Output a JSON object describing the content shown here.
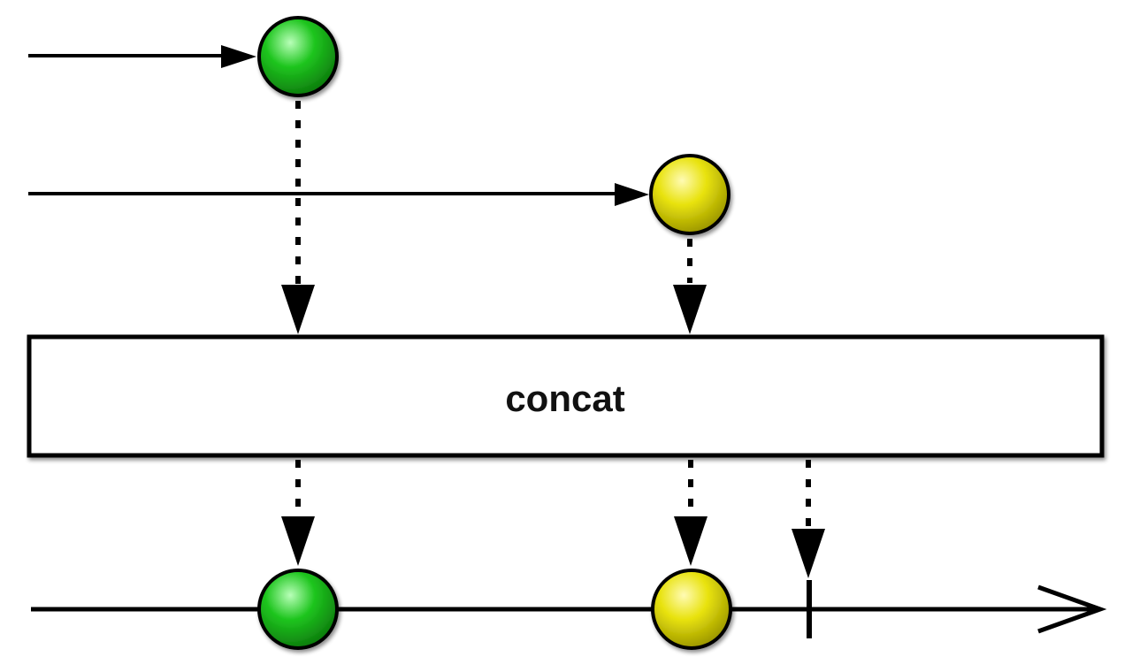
{
  "operator": {
    "label": "concat"
  },
  "inputs": [
    {
      "events": [
        {
          "color": "green"
        }
      ],
      "completes": false
    },
    {
      "events": [
        {
          "color": "yellow"
        }
      ],
      "completes": false
    }
  ],
  "output": {
    "events": [
      {
        "color": "green"
      },
      {
        "color": "yellow"
      }
    ],
    "completes": true
  },
  "colors": {
    "green": "#1ec51e",
    "green_highlight": "#b8ffb8",
    "green_shadow": "#0d7a0d",
    "yellow": "#e8e20c",
    "yellow_highlight": "#fffbb4",
    "yellow_shadow": "#9a9500",
    "line": "#000000",
    "box_fill": "#ffffff"
  }
}
